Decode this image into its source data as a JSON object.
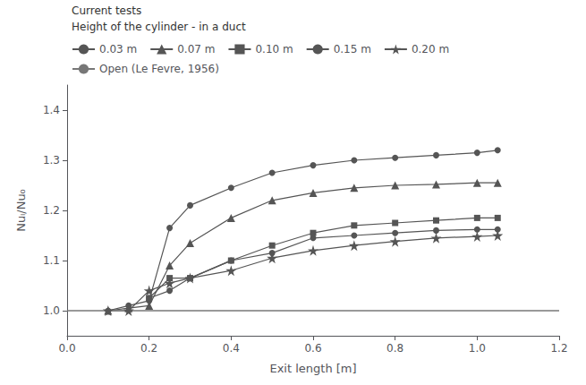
{
  "chart_data": {
    "type": "line",
    "xlabel": "Exit length [m]",
    "ylabel": "Nuₗ/Nu₀",
    "xlim": [
      0.0,
      1.2
    ],
    "ylim": [
      0.95,
      1.45
    ],
    "xticks": [
      {
        "value": 0.0,
        "label": "0.0"
      },
      0.2,
      0.4,
      0.6,
      0.8,
      {
        "value": 1.0,
        "label": "1.0"
      },
      1.2
    ],
    "yticks": [
      {
        "value": 1.0,
        "label": "1.0"
      },
      1.1,
      1.2,
      1.3,
      1.4
    ],
    "grid": false,
    "legend": "upper left",
    "annotations": [
      "Current tests",
      "Height of the cylinder - in a duct"
    ],
    "series": [
      {
        "name": "0.03 m",
        "marker": "circle",
        "color": "#555555",
        "x": [
          0.1,
          0.15,
          0.2,
          0.25,
          0.3,
          0.4,
          0.5,
          0.6,
          0.7,
          0.8,
          0.9,
          1.0,
          1.05
        ],
        "values": [
          1.0,
          1.01,
          1.02,
          1.165,
          1.21,
          1.245,
          1.275,
          1.29,
          1.3,
          1.305,
          1.31,
          1.315,
          1.32
        ]
      },
      {
        "name": "0.07 m",
        "marker": "triangle",
        "color": "#555555",
        "x": [
          0.1,
          0.15,
          0.2,
          0.25,
          0.3,
          0.4,
          0.5,
          0.6,
          0.7,
          0.8,
          0.9,
          1.0,
          1.05
        ],
        "values": [
          1.0,
          1.005,
          1.01,
          1.09,
          1.135,
          1.185,
          1.22,
          1.235,
          1.245,
          1.25,
          1.252,
          1.255,
          1.255
        ]
      },
      {
        "name": "0.10 m",
        "marker": "square",
        "color": "#555555",
        "x": [
          0.2,
          0.25,
          0.3,
          0.4,
          0.5,
          0.6,
          0.7,
          0.8,
          0.9,
          1.0,
          1.05
        ],
        "values": [
          1.025,
          1.065,
          1.065,
          1.1,
          1.13,
          1.155,
          1.17,
          1.175,
          1.18,
          1.185,
          1.185
        ]
      },
      {
        "name": "0.15 m",
        "marker": "circle",
        "color": "#555555",
        "x": [
          0.2,
          0.25,
          0.3,
          0.4,
          0.5,
          0.6,
          0.7,
          0.8,
          0.9,
          1.0,
          1.05
        ],
        "values": [
          1.025,
          1.04,
          1.065,
          1.1,
          1.115,
          1.145,
          1.15,
          1.155,
          1.16,
          1.162,
          1.162
        ]
      },
      {
        "name": "0.20 m",
        "marker": "star",
        "color": "#555555",
        "x": [
          0.1,
          0.15,
          0.2,
          0.25,
          0.3,
          0.4,
          0.5,
          0.6,
          0.7,
          0.8,
          0.9,
          1.0,
          1.05
        ],
        "values": [
          1.0,
          1.0,
          1.04,
          1.055,
          1.065,
          1.08,
          1.105,
          1.12,
          1.13,
          1.138,
          1.145,
          1.148,
          1.15
        ]
      },
      {
        "name": "Open (Le Fevre, 1956)",
        "marker": "none",
        "line_style": "solid",
        "color": "#777777",
        "x": [
          0.0,
          1.2
        ],
        "values": [
          1.0,
          1.0
        ]
      }
    ]
  }
}
